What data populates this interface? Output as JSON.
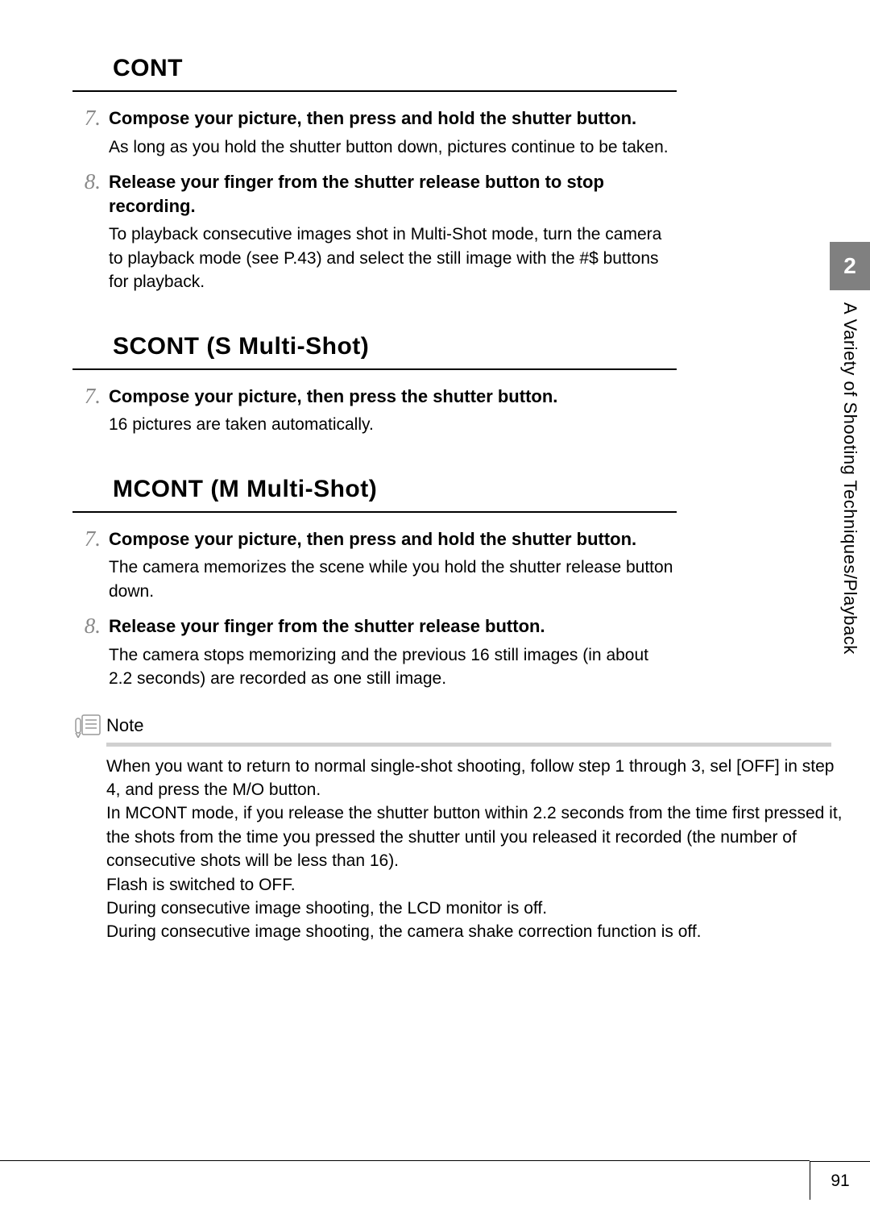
{
  "sections": [
    {
      "title": "CONT",
      "steps": [
        {
          "num": "7.",
          "heading": "Compose your picture, then press and hold the shutter button.",
          "text": "As long as you hold the shutter button down, pictures continue to be taken."
        },
        {
          "num": "8.",
          "heading": "Release your finger from the shutter release button to stop recording.",
          "text": "To playback consecutive images shot in Multi-Shot mode, turn the camera to playback mode (see P.43) and select the still image with the #$ buttons for playback."
        }
      ]
    },
    {
      "title": "SCONT (S Multi-Shot)",
      "steps": [
        {
          "num": "7.",
          "heading": "Compose your picture, then press the shutter button.",
          "text": "16 pictures are taken automatically."
        }
      ]
    },
    {
      "title": "MCONT (M Multi-Shot)",
      "steps": [
        {
          "num": "7.",
          "heading": "Compose your picture, then press and hold the shutter button.",
          "text": "The camera memorizes the scene while you hold the shutter release button down."
        },
        {
          "num": "8.",
          "heading": "Release your finger from the shutter release button.",
          "text": "The camera stops memorizing and the previous 16 still images (in about 2.2 seconds) are recorded as one still image."
        }
      ]
    }
  ],
  "note": {
    "label": "Note",
    "body": "When you want to return to normal single-shot shooting, follow step 1 through 3, sel [OFF] in step 4, and press the M/O button.\nIn MCONT mode, if you release the shutter button within 2.2 seconds from the time first pressed it, the shots from the time you pressed the shutter until you released it recorded (the number of consecutive shots will be less than 16).\nFlash is switched to OFF.\nDuring consecutive image shooting, the LCD monitor is off.\nDuring consecutive image shooting, the camera shake correction function is off."
  },
  "side": {
    "chapter": "2",
    "label": "A Variety of Shooting Techniques/Playback"
  },
  "page_number": "91"
}
